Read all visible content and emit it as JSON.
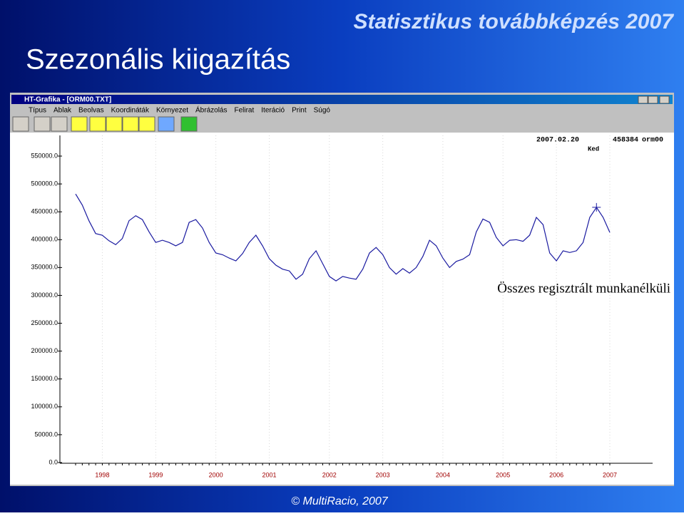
{
  "slide": {
    "header": "Statisztikus továbbképzés 2007",
    "title": "Szezonális kiigazítás",
    "footer": "© MultiRacio, 2007"
  },
  "window": {
    "title": "HT-Grafika - [ORM00.TXT]",
    "menu": [
      "Típus",
      "Ablak",
      "Beolvas",
      "Koordináták",
      "Környezet",
      "Ábrázolás",
      "Felirat",
      "Iteráció",
      "Print",
      "Súgó"
    ]
  },
  "cursor": {
    "date": "2007.02.20",
    "value": "458384",
    "file": "orm00",
    "day": "Ked"
  },
  "chart_data": {
    "type": "line",
    "annotation": "Összes regisztrált munkanélküli",
    "categories": [
      null,
      null,
      null,
      null,
      "1998",
      null,
      null,
      null,
      null,
      null,
      null,
      null,
      "1999",
      null,
      null,
      null,
      null,
      null,
      null,
      null,
      null,
      "2000",
      null,
      null,
      null,
      null,
      null,
      null,
      null,
      "2001",
      null,
      null,
      null,
      null,
      null,
      null,
      null,
      null,
      "2002",
      null,
      null,
      null,
      null,
      null,
      null,
      null,
      "2003",
      null,
      null,
      null,
      null,
      null,
      null,
      null,
      null,
      "2004",
      null,
      null,
      null,
      null,
      null,
      null,
      null,
      null,
      "2005",
      null,
      null,
      null,
      null,
      null,
      null,
      null,
      "2006",
      null,
      null,
      null,
      null,
      null,
      null,
      null,
      "2007"
    ],
    "series": [
      {
        "name": "orm00",
        "color": "#1a1aa0",
        "values": [
          482000,
          462000,
          434000,
          411000,
          408000,
          398000,
          391000,
          402000,
          434000,
          443000,
          436000,
          414000,
          395000,
          399000,
          395000,
          389000,
          395000,
          431000,
          436000,
          421000,
          395000,
          376000,
          373000,
          367000,
          362000,
          375000,
          395000,
          408000,
          389000,
          366000,
          354000,
          347000,
          344000,
          329000,
          338000,
          366000,
          380000,
          357000,
          334000,
          326000,
          334000,
          331000,
          329000,
          347000,
          376000,
          386000,
          373000,
          350000,
          338000,
          348000,
          340000,
          350000,
          370000,
          399000,
          389000,
          367000,
          350000,
          361000,
          365000,
          373000,
          414000,
          437000,
          431000,
          404000,
          389000,
          399000,
          400000,
          397000,
          408000,
          440000,
          427000,
          376000,
          362000,
          380000,
          377000,
          380000,
          395000,
          440000,
          458000,
          440000,
          413000
        ]
      }
    ],
    "ylim": [
      0,
      550000
    ],
    "yticks": [
      {
        "value": 0,
        "label": "0.0"
      },
      {
        "value": 50000,
        "label": "50000.0"
      },
      {
        "value": 100000,
        "label": "100000.0"
      },
      {
        "value": 150000,
        "label": "150000.0"
      },
      {
        "value": 200000,
        "label": "200000.0"
      },
      {
        "value": 250000,
        "label": "250000.0"
      },
      {
        "value": 300000,
        "label": "300000.0"
      },
      {
        "value": 350000,
        "label": "350000.0"
      },
      {
        "value": 400000,
        "label": "400000.0"
      },
      {
        "value": 450000,
        "label": "450000.0"
      },
      {
        "value": 500000,
        "label": "500000.0"
      },
      {
        "value": 550000,
        "label": "550000.0"
      }
    ],
    "grid": true
  }
}
